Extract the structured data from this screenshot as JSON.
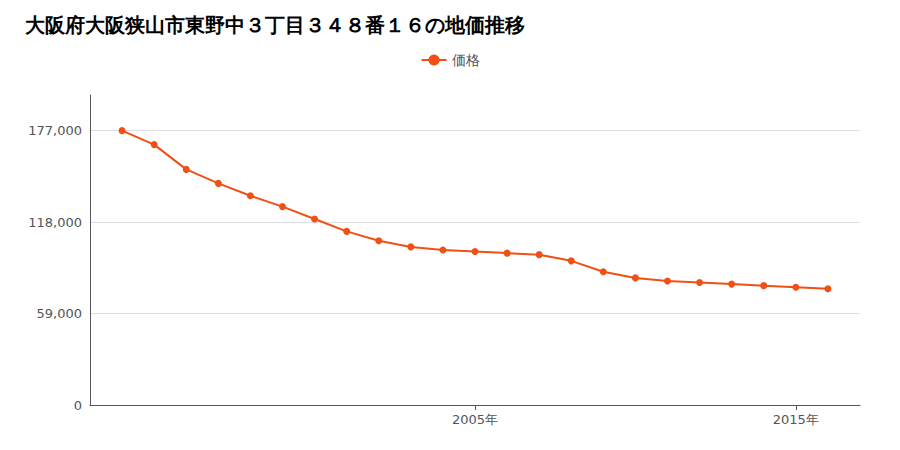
{
  "chart_data": {
    "type": "line",
    "title": "大阪府大阪狭山市東野中３丁目３４８番１６の地価推移",
    "x": [
      1994,
      1995,
      1996,
      1997,
      1998,
      1999,
      2000,
      2001,
      2002,
      2003,
      2004,
      2005,
      2006,
      2007,
      2008,
      2009,
      2010,
      2011,
      2012,
      2013,
      2014,
      2015,
      2016
    ],
    "series": [
      {
        "name": "価格",
        "color": "#f05014",
        "values": [
          177000,
          168000,
          152000,
          143000,
          135000,
          128000,
          120000,
          112000,
          106000,
          102000,
          100000,
          99000,
          98000,
          97000,
          93000,
          86000,
          82000,
          80000,
          79000,
          78000,
          77000,
          76000,
          75000
        ]
      }
    ],
    "xlim": [
      1993,
      2017
    ],
    "xticks": [
      {
        "value": 2005,
        "label": "2005年"
      },
      {
        "value": 2015,
        "label": "2015年"
      }
    ],
    "ylim": [
      0,
      200000
    ],
    "yticks": [
      0,
      {
        "value": 59000,
        "label": "59,000"
      },
      {
        "value": 118000,
        "label": "118,000"
      },
      {
        "value": 177000,
        "label": "177,000"
      }
    ],
    "grid": true,
    "legend": "top",
    "marker": "circle"
  }
}
